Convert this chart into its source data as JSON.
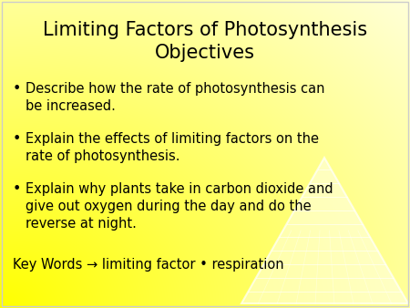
{
  "title_line1": "Limiting Factors of Photosynthesis",
  "title_line2": "Objectives",
  "title_fontsize": 15,
  "bullet_fontsize": 10.5,
  "key_words_fontsize": 10.5,
  "text_color": "#000000",
  "bullets": [
    "Describe how the rate of photosynthesis can\nbe increased.",
    "Explain the effects of limiting factors on the\nrate of photosynthesis.",
    "Explain why plants take in carbon dioxide and\ngive out oxygen during the day and do the\nreverse at night."
  ],
  "key_words_text": "Key Words → limiting factor • respiration",
  "bullet_char": "•",
  "bg_yellow": "#ffff00",
  "bg_white": "#ffffff",
  "border_color": "#aaaaaa"
}
